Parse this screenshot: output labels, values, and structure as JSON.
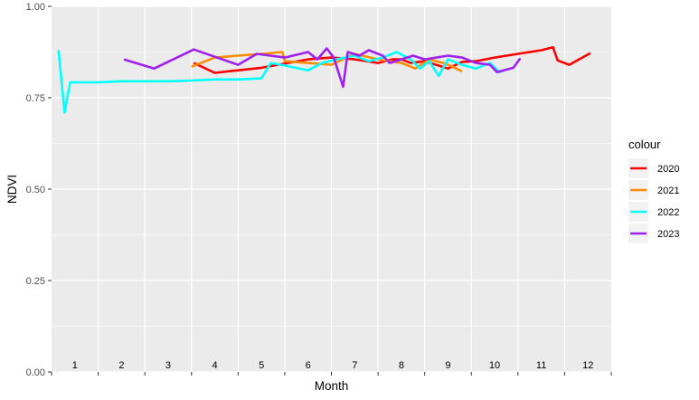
{
  "chart_data": {
    "type": "line",
    "xlabel": "Month",
    "ylabel": "NDVI",
    "ylim": [
      0,
      1
    ],
    "xlim": [
      0.5,
      12.5
    ],
    "y_ticks": [
      "0.00",
      "0.25",
      "0.50",
      "0.75",
      "1.00"
    ],
    "month_labels": [
      "1",
      "2",
      "3",
      "4",
      "5",
      "6",
      "7",
      "8",
      "9",
      "10",
      "11",
      "12"
    ],
    "grid": true,
    "legend": {
      "title": "colour",
      "position": "right"
    },
    "series": [
      {
        "name": "2020",
        "color": "#ff0000",
        "x": [
          3.55,
          4.0,
          5.0,
          6.0,
          6.5,
          7.0,
          7.5,
          7.8,
          8.0,
          8.2,
          8.5,
          9.0,
          9.3,
          9.6,
          10.0,
          10.5,
          11.0,
          11.25,
          11.35,
          11.6,
          12.05
        ],
        "y": [
          0.845,
          0.818,
          0.832,
          0.855,
          0.86,
          0.855,
          0.845,
          0.855,
          0.855,
          0.845,
          0.85,
          0.83,
          0.848,
          0.85,
          0.86,
          0.87,
          0.88,
          0.888,
          0.852,
          0.84,
          0.872
        ]
      },
      {
        "name": "2021",
        "color": "#ff8c00",
        "x": [
          3.5,
          4.0,
          4.5,
          5.0,
          5.45,
          5.5,
          6.0,
          6.5,
          7.0,
          7.5,
          8.0,
          8.3,
          8.6,
          8.9,
          9.1,
          9.3
        ],
        "y": [
          0.835,
          0.86,
          0.865,
          0.87,
          0.875,
          0.85,
          0.845,
          0.84,
          0.87,
          0.855,
          0.845,
          0.83,
          0.855,
          0.845,
          0.835,
          0.822
        ]
      },
      {
        "name": "2022",
        "color": "#00ffff",
        "x": [
          0.65,
          0.78,
          0.9,
          1.5,
          2.0,
          2.5,
          3.0,
          3.5,
          4.0,
          4.5,
          5.0,
          5.2,
          5.5,
          6.0,
          6.3,
          6.6,
          7.0,
          7.3,
          7.6,
          7.9,
          8.2,
          8.4,
          8.6,
          8.8,
          9.0,
          9.3,
          9.6,
          9.9,
          10.1,
          10.2
        ],
        "y": [
          0.88,
          0.71,
          0.792,
          0.792,
          0.795,
          0.795,
          0.795,
          0.797,
          0.8,
          0.8,
          0.803,
          0.845,
          0.838,
          0.825,
          0.845,
          0.855,
          0.865,
          0.85,
          0.86,
          0.875,
          0.855,
          0.83,
          0.85,
          0.81,
          0.855,
          0.84,
          0.83,
          0.845,
          0.82,
          0.825
        ]
      },
      {
        "name": "2023",
        "color": "#a020f0",
        "x": [
          2.05,
          2.7,
          3.55,
          4.5,
          4.9,
          5.5,
          6.0,
          6.2,
          6.4,
          6.55,
          6.75,
          6.85,
          7.1,
          7.3,
          7.6,
          7.75,
          8.0,
          8.25,
          8.5,
          9.0,
          9.3,
          9.6,
          9.9,
          10.05,
          10.4,
          10.55
        ],
        "y": [
          0.855,
          0.83,
          0.882,
          0.84,
          0.87,
          0.86,
          0.875,
          0.855,
          0.885,
          0.86,
          0.78,
          0.875,
          0.865,
          0.88,
          0.865,
          0.845,
          0.855,
          0.865,
          0.855,
          0.865,
          0.86,
          0.845,
          0.84,
          0.82,
          0.832,
          0.858
        ]
      }
    ]
  }
}
